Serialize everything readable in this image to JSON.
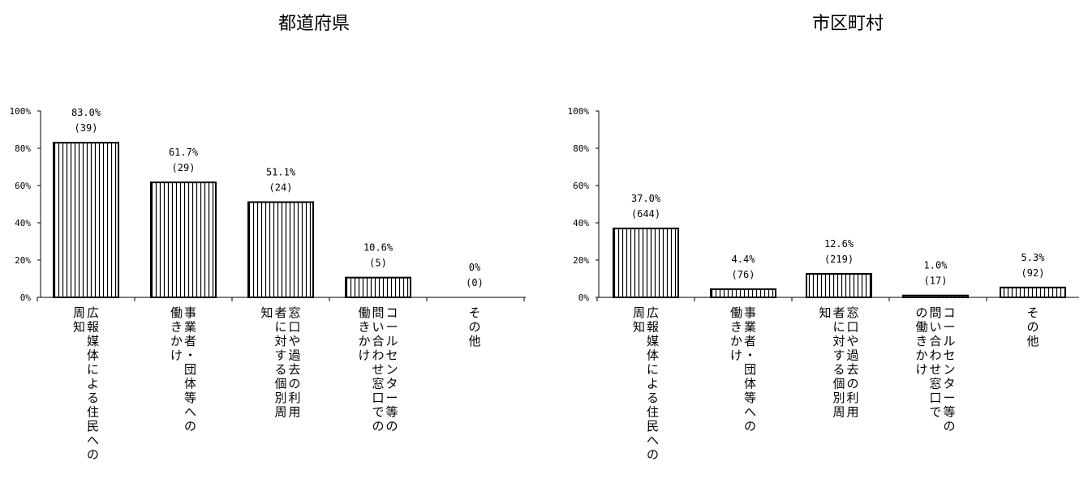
{
  "chart_data": [
    {
      "type": "bar",
      "title": "都道府県",
      "ylim": [
        0,
        100
      ],
      "yticks": [
        "100%",
        "80%",
        "60%",
        "40%",
        "20%",
        "0%"
      ],
      "categories": [
        [
          "周知",
          "広報媒体による住民への"
        ],
        [
          "働きかけ",
          "事業者・団体等への"
        ],
        [
          "知",
          "者に対する個別周",
          "窓口や過去の利用"
        ],
        [
          "働きかけ",
          "問い合わせ窓口での",
          "コールセンター等の"
        ],
        [
          "その他"
        ]
      ],
      "values": [
        83.0,
        61.7,
        51.1,
        10.6,
        0
      ],
      "value_labels": [
        "83.0%",
        "61.7%",
        "51.1%",
        "10.6%",
        "0%"
      ],
      "count_labels": [
        "(39)",
        "(29)",
        "(24)",
        "(5)",
        "(0)"
      ],
      "colors": {
        "bar_fill": "#ffffff",
        "bar_stroke": "#000000",
        "hatch": "#000000"
      }
    },
    {
      "type": "bar",
      "title": "市区町村",
      "ylim": [
        0,
        100
      ],
      "yticks": [
        "100%",
        "80%",
        "60%",
        "40%",
        "20%",
        "0%"
      ],
      "categories": [
        [
          "周知",
          "広報媒体による住民への"
        ],
        [
          "働きかけ",
          "事業者・団体等への"
        ],
        [
          "知",
          "者に対する個別周",
          "窓口や過去の利用"
        ],
        [
          "の働きかけ",
          "問い合わせ窓口で",
          "コールセンター等の"
        ],
        [
          "その他"
        ]
      ],
      "values": [
        37.0,
        4.4,
        12.6,
        1.0,
        5.3
      ],
      "value_labels": [
        "37.0%",
        "4.4%",
        "12.6%",
        "1.0%",
        "5.3%"
      ],
      "count_labels": [
        "(644)",
        "(76)",
        "(219)",
        "(17)",
        "(92)"
      ],
      "colors": {
        "bar_fill": "#ffffff",
        "bar_stroke": "#000000",
        "hatch": "#000000"
      }
    }
  ]
}
